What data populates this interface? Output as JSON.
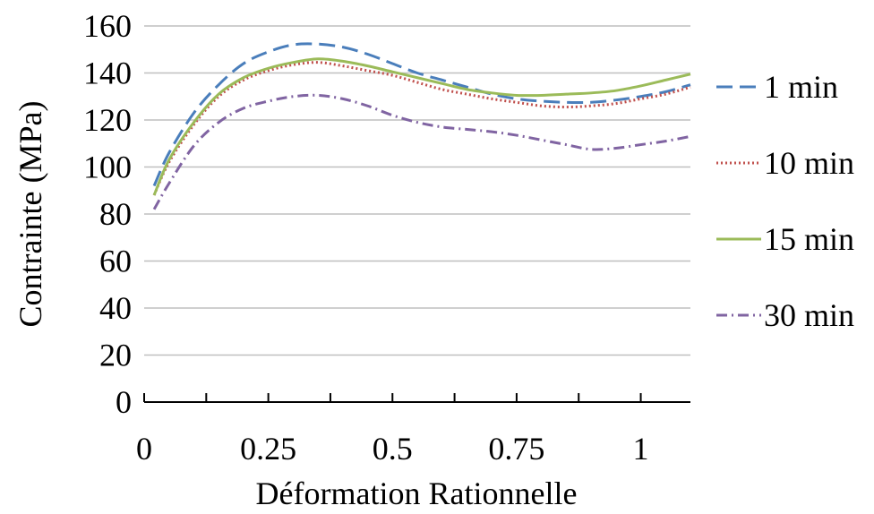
{
  "chart_data": {
    "type": "line",
    "title": "",
    "xlabel": "Déformation Rationnelle",
    "ylabel": "Contrainte (MPa)",
    "xlim": [
      0,
      1.1
    ],
    "ylim": [
      0,
      160
    ],
    "x_ticks": [
      0,
      0.25,
      0.5,
      0.75,
      1
    ],
    "x_tick_labels": [
      "0",
      "0.25",
      "0.5",
      "0.75",
      "1"
    ],
    "x_minor_ticks": [
      0.125,
      0.375,
      0.625,
      0.875
    ],
    "y_ticks": [
      0,
      20,
      40,
      60,
      80,
      100,
      120,
      140,
      160
    ],
    "y_tick_labels": [
      "0",
      "20",
      "40",
      "60",
      "80",
      "100",
      "120",
      "140",
      "160"
    ],
    "grid": "horizontal",
    "legend_position": "right",
    "series": [
      {
        "name": "1 min",
        "color": "#4a7ebb",
        "dash": "18,8",
        "points": [
          [
            0.02,
            92
          ],
          [
            0.05,
            106
          ],
          [
            0.1,
            123
          ],
          [
            0.15,
            135
          ],
          [
            0.2,
            144
          ],
          [
            0.25,
            149
          ],
          [
            0.3,
            152
          ],
          [
            0.35,
            152.3
          ],
          [
            0.4,
            151
          ],
          [
            0.45,
            148
          ],
          [
            0.5,
            144
          ],
          [
            0.55,
            140
          ],
          [
            0.6,
            137
          ],
          [
            0.65,
            134
          ],
          [
            0.7,
            131
          ],
          [
            0.75,
            129
          ],
          [
            0.8,
            128
          ],
          [
            0.85,
            127.5
          ],
          [
            0.9,
            127.5
          ],
          [
            0.95,
            128.5
          ],
          [
            1.0,
            130
          ],
          [
            1.05,
            132
          ],
          [
            1.1,
            135
          ]
        ]
      },
      {
        "name": "10 min",
        "color": "#c0504d",
        "dash": "2,3",
        "points": [
          [
            0.02,
            88
          ],
          [
            0.05,
            102
          ],
          [
            0.1,
            118
          ],
          [
            0.15,
            130
          ],
          [
            0.2,
            137
          ],
          [
            0.25,
            141
          ],
          [
            0.3,
            143.5
          ],
          [
            0.35,
            144.5
          ],
          [
            0.4,
            143
          ],
          [
            0.45,
            141
          ],
          [
            0.5,
            139
          ],
          [
            0.55,
            136
          ],
          [
            0.6,
            133
          ],
          [
            0.65,
            131
          ],
          [
            0.7,
            129
          ],
          [
            0.75,
            127.5
          ],
          [
            0.8,
            126
          ],
          [
            0.85,
            125.5
          ],
          [
            0.9,
            126
          ],
          [
            0.95,
            127
          ],
          [
            1.0,
            129
          ],
          [
            1.05,
            131
          ],
          [
            1.1,
            134
          ]
        ]
      },
      {
        "name": "15 min",
        "color": "#9bbb59",
        "dash": "",
        "points": [
          [
            0.02,
            88
          ],
          [
            0.05,
            103
          ],
          [
            0.1,
            119
          ],
          [
            0.15,
            131
          ],
          [
            0.2,
            138
          ],
          [
            0.25,
            142
          ],
          [
            0.3,
            144.5
          ],
          [
            0.35,
            146
          ],
          [
            0.4,
            145
          ],
          [
            0.45,
            143
          ],
          [
            0.5,
            140.5
          ],
          [
            0.55,
            138
          ],
          [
            0.6,
            135.5
          ],
          [
            0.65,
            133
          ],
          [
            0.7,
            131.5
          ],
          [
            0.75,
            130.5
          ],
          [
            0.8,
            130.5
          ],
          [
            0.85,
            131
          ],
          [
            0.9,
            131.5
          ],
          [
            0.95,
            132.5
          ],
          [
            1.0,
            134.5
          ],
          [
            1.05,
            137
          ],
          [
            1.1,
            139.5
          ]
        ]
      },
      {
        "name": "30 min",
        "color": "#8064a2",
        "dash": "12,5,2,5",
        "points": [
          [
            0.02,
            82
          ],
          [
            0.05,
            93
          ],
          [
            0.1,
            109
          ],
          [
            0.15,
            119
          ],
          [
            0.2,
            125
          ],
          [
            0.25,
            128
          ],
          [
            0.3,
            130
          ],
          [
            0.35,
            130.5
          ],
          [
            0.4,
            129
          ],
          [
            0.45,
            126
          ],
          [
            0.5,
            122
          ],
          [
            0.55,
            119
          ],
          [
            0.6,
            117
          ],
          [
            0.65,
            116
          ],
          [
            0.7,
            115
          ],
          [
            0.75,
            113.5
          ],
          [
            0.8,
            111.5
          ],
          [
            0.85,
            109.5
          ],
          [
            0.9,
            107.5
          ],
          [
            0.95,
            108
          ],
          [
            1.0,
            109.5
          ],
          [
            1.05,
            111
          ],
          [
            1.1,
            113
          ]
        ]
      }
    ]
  }
}
